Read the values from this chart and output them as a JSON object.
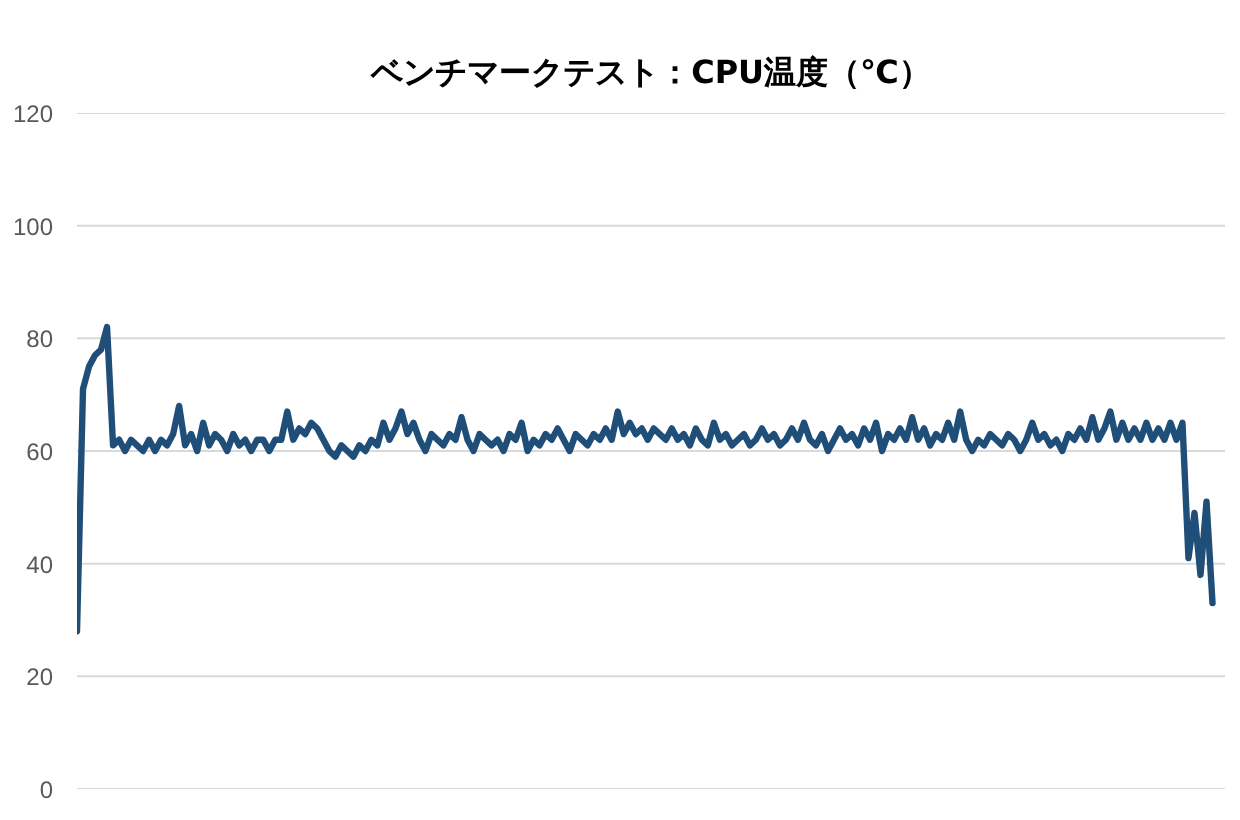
{
  "chart_data": {
    "type": "line",
    "title": "ベンチマークテスト：CPU温度（℃）",
    "categories": [
      null,
      null,
      null,
      null,
      null,
      null,
      null,
      null,
      null,
      null,
      null,
      null,
      null,
      null,
      null,
      null,
      null,
      null,
      null,
      null,
      null,
      null,
      null,
      null,
      null,
      null,
      null,
      null,
      null,
      null,
      null,
      null,
      null,
      null,
      null,
      null,
      null,
      null,
      null,
      null,
      null,
      null,
      null,
      null,
      null,
      null,
      null,
      null,
      null,
      null,
      null,
      null,
      null,
      null,
      null,
      null,
      null,
      null,
      null,
      null,
      null,
      null,
      null,
      null,
      null,
      null,
      null,
      null,
      null,
      null,
      null,
      null,
      null,
      null,
      null,
      null,
      null,
      null,
      null,
      null,
      null,
      null,
      null,
      null,
      null,
      null,
      null,
      null,
      null,
      null,
      null,
      null,
      null,
      null,
      null,
      null,
      null,
      null,
      null,
      null,
      null,
      null,
      null,
      null,
      null,
      null,
      null,
      null,
      null,
      null,
      null,
      null,
      null,
      null,
      null,
      null,
      null,
      null,
      null,
      null,
      null,
      null,
      null,
      null,
      null,
      null,
      null,
      null,
      null,
      null,
      null,
      null,
      null,
      null,
      null,
      null,
      null,
      null,
      null,
      null,
      null,
      null,
      null,
      null,
      null,
      null,
      null,
      null,
      null,
      null,
      null,
      null,
      null,
      null,
      null,
      null,
      null,
      null,
      null,
      null,
      null,
      null,
      null,
      null,
      null,
      null,
      null,
      null,
      null,
      null,
      null,
      null,
      null,
      null,
      null,
      null,
      null,
      null,
      null,
      null,
      null,
      null,
      null,
      null,
      null,
      null,
      null,
      null,
      null,
      null
    ],
    "values": [
      28,
      71,
      75,
      77,
      78,
      82,
      61,
      62,
      60,
      62,
      61,
      60,
      62,
      60,
      62,
      61,
      63,
      68,
      61,
      63,
      60,
      65,
      61,
      63,
      62,
      60,
      63,
      61,
      62,
      60,
      62,
      62,
      60,
      62,
      62,
      67,
      62,
      64,
      63,
      65,
      64,
      62,
      60,
      59,
      61,
      60,
      59,
      61,
      60,
      62,
      61,
      65,
      62,
      64,
      67,
      63,
      65,
      62,
      60,
      63,
      62,
      61,
      63,
      62,
      66,
      62,
      60,
      63,
      62,
      61,
      62,
      60,
      63,
      62,
      65,
      60,
      62,
      61,
      63,
      62,
      64,
      62,
      60,
      63,
      62,
      61,
      63,
      62,
      64,
      62,
      67,
      63,
      65,
      63,
      64,
      62,
      64,
      63,
      62,
      64,
      62,
      63,
      61,
      64,
      62,
      61,
      65,
      62,
      63,
      61,
      62,
      63,
      61,
      62,
      64,
      62,
      63,
      61,
      62,
      64,
      62,
      65,
      62,
      61,
      63,
      60,
      62,
      64,
      62,
      63,
      61,
      64,
      62,
      65,
      60,
      63,
      62,
      64,
      62,
      66,
      62,
      64,
      61,
      63,
      62,
      65,
      62,
      67,
      62,
      60,
      62,
      61,
      63,
      62,
      61,
      63,
      62,
      60,
      62,
      65,
      62,
      63,
      61,
      62,
      60,
      63,
      62,
      64,
      62,
      66,
      62,
      64,
      67,
      62,
      65,
      62,
      64,
      62,
      65,
      62,
      64,
      62,
      65,
      62,
      65,
      41,
      49,
      38,
      51,
      33
    ],
    "color": "#1f4e79",
    "ylim": [
      0,
      120
    ],
    "yticks": [
      0,
      20,
      40,
      60,
      80,
      100,
      120
    ],
    "grid": "y",
    "tick_labels": "y"
  }
}
